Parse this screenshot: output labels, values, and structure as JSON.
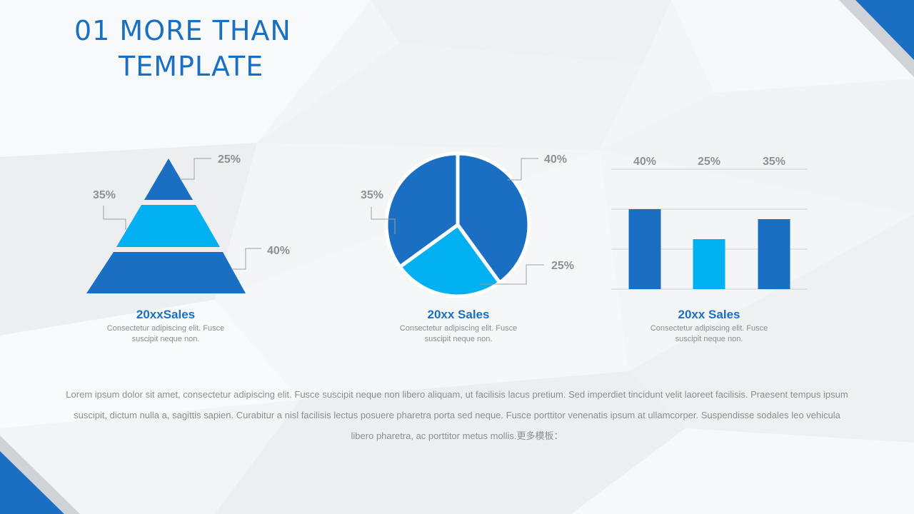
{
  "title": {
    "line1": "01 MORE THAN",
    "line2": "TEMPLATE"
  },
  "colors": {
    "dark_blue": "#1a6fc2",
    "light_blue": "#00b0f0",
    "label_gray": "#8c9196"
  },
  "chart_data": [
    {
      "type": "pyramid",
      "title": "20xxSales",
      "description": "Consectetur adipiscing elit. Fusce suscipit neque non.",
      "levels": [
        {
          "label": "25%",
          "value": 25,
          "color": "#1a6fc2"
        },
        {
          "label": "35%",
          "value": 35,
          "color": "#00b0f0"
        },
        {
          "label": "40%",
          "value": 40,
          "color": "#1a6fc2"
        }
      ]
    },
    {
      "type": "pie",
      "title": "20xx Sales",
      "description": "Consectetur adipiscing elit. Fusce suscipit neque non.",
      "slices": [
        {
          "label": "40%",
          "value": 40,
          "color": "#1a6fc2"
        },
        {
          "label": "25%",
          "value": 25,
          "color": "#00b0f0"
        },
        {
          "label": "35%",
          "value": 35,
          "color": "#1a6fc2"
        }
      ]
    },
    {
      "type": "bar",
      "title": "20xx Sales",
      "description": "Consectetur adipiscing elit. Fusce suscipit neque non.",
      "values": [
        40,
        25,
        35
      ],
      "labels": [
        "40%",
        "25%",
        "35%"
      ],
      "colors": [
        "#1a6fc2",
        "#00b0f0",
        "#1a6fc2"
      ],
      "ylim": [
        0,
        60
      ],
      "grid": true
    }
  ],
  "body_text": "Lorem ipsum dolor sit amet, consectetur adipiscing elit. Fusce suscipit neque non libero aliquam, ut facilisis lacus pretium. Sed imperdiet tincidunt velit laoreet facilisis. Praesent tempus ipsum suscipit, dictum nulla a, sagittis sapien. Curabitur a nisl facilisis lectus posuere pharetra porta sed neque. Fusce porttitor venenatis ipsum at ullamcorper. Suspendisse sodales leo vehicula libero pharetra, ac porttitor metus mollis.更多模板："
}
